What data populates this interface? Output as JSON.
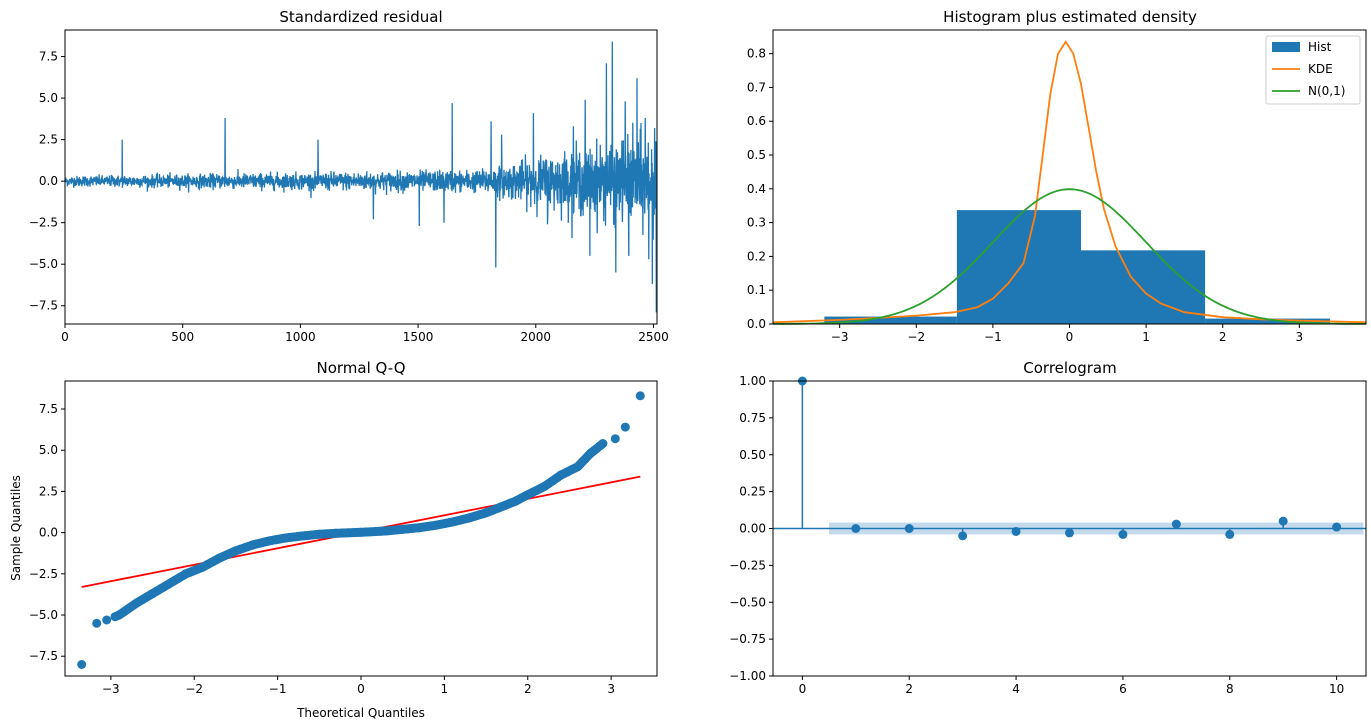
{
  "figure_colors": {
    "blue": "#1f77b4",
    "orange": "#ff7f0e",
    "green": "#2ca02c",
    "red": "#ff0000",
    "band": "#b9d3ea"
  },
  "chart_data": [
    {
      "id": "residual",
      "type": "line",
      "title": "Standardized residual",
      "xlabel": "",
      "ylabel": "",
      "xlim": [
        0,
        2515
      ],
      "ylim": [
        -8.6,
        9.1
      ],
      "xticks": [
        0,
        500,
        1000,
        1500,
        2000,
        2500
      ],
      "yticks": [
        -7.5,
        -5.0,
        -2.5,
        0.0,
        2.5,
        5.0,
        7.5
      ],
      "n": 2515,
      "series": [
        {
          "name": "",
          "values_note": "",
          "values": []
        }
      ],
      "notable_points": [
        {
          "x": 243,
          "y": 2.5
        },
        {
          "x": 680,
          "y": 3.8
        },
        {
          "x": 1075,
          "y": 2.5
        },
        {
          "x": 1310,
          "y": -2.3
        },
        {
          "x": 1505,
          "y": -2.7
        },
        {
          "x": 1610,
          "y": -2.5
        },
        {
          "x": 1645,
          "y": 4.7
        },
        {
          "x": 1810,
          "y": 3.6
        },
        {
          "x": 1830,
          "y": -5.2
        },
        {
          "x": 1855,
          "y": 2.8
        },
        {
          "x": 1990,
          "y": 4.1
        },
        {
          "x": 2050,
          "y": -2.6
        },
        {
          "x": 2160,
          "y": 3.3
        },
        {
          "x": 2210,
          "y": 4.9
        },
        {
          "x": 2230,
          "y": -4.5
        },
        {
          "x": 2300,
          "y": 7.1
        },
        {
          "x": 2325,
          "y": 8.4
        },
        {
          "x": 2340,
          "y": -5.5
        },
        {
          "x": 2380,
          "y": 4.8
        },
        {
          "x": 2395,
          "y": -4.5
        },
        {
          "x": 2430,
          "y": 6.2
        },
        {
          "x": 2465,
          "y": 3.8
        },
        {
          "x": 2480,
          "y": -4.7
        },
        {
          "x": 2495,
          "y": -6.2
        },
        {
          "x": 2505,
          "y": 3.2
        },
        {
          "x": 2512,
          "y": -7.9
        },
        {
          "x": 2515,
          "y": 2.8
        }
      ]
    },
    {
      "id": "histogram",
      "type": "bar",
      "title": "Histogram plus estimated density",
      "xlim": [
        -3.87,
        3.87
      ],
      "ylim": [
        0.0,
        0.87
      ],
      "xticks": [
        -3,
        -2,
        -1,
        0,
        1,
        2,
        3
      ],
      "yticks": [
        0.0,
        0.1,
        0.2,
        0.3,
        0.4,
        0.5,
        0.6,
        0.7,
        0.8
      ],
      "legend": [
        "Hist",
        "KDE",
        "N(0,1)"
      ],
      "legend_position": "top-right",
      "bins": [
        {
          "x0": -3.2,
          "x1": -1.47,
          "height": 0.022
        },
        {
          "x0": -1.47,
          "x1": 0.15,
          "height": 0.337
        },
        {
          "x0": 0.15,
          "x1": 1.77,
          "height": 0.218
        },
        {
          "x0": 1.77,
          "x1": 3.4,
          "height": 0.016
        }
      ],
      "kde": {
        "x": [
          -3.87,
          -3.0,
          -2.5,
          -2.0,
          -1.5,
          -1.2,
          -1.0,
          -0.8,
          -0.6,
          -0.45,
          -0.35,
          -0.25,
          -0.15,
          -0.05,
          0.05,
          0.15,
          0.25,
          0.35,
          0.45,
          0.6,
          0.8,
          1.0,
          1.2,
          1.5,
          2.0,
          2.5,
          3.0,
          3.87
        ],
        "y": [
          0.005,
          0.012,
          0.018,
          0.025,
          0.035,
          0.05,
          0.075,
          0.12,
          0.18,
          0.32,
          0.5,
          0.68,
          0.8,
          0.835,
          0.8,
          0.71,
          0.58,
          0.45,
          0.34,
          0.23,
          0.14,
          0.09,
          0.06,
          0.035,
          0.02,
          0.014,
          0.01,
          0.005
        ]
      },
      "normal_pdf": {
        "mean": 0,
        "sd": 1
      }
    },
    {
      "id": "qq",
      "type": "scatter",
      "title": "Normal Q-Q",
      "xlabel": "Theoretical Quantiles",
      "ylabel": "Sample Quantiles",
      "xlim": [
        -3.55,
        3.55
      ],
      "ylim": [
        -8.7,
        9.2
      ],
      "xticks": [
        -3,
        -2,
        -1,
        0,
        1,
        2,
        3
      ],
      "yticks": [
        -7.5,
        -5.0,
        -2.5,
        0.0,
        2.5,
        5.0,
        7.5
      ],
      "reference_line": {
        "slope": 1.0,
        "intercept": 0.05,
        "x0": -3.35,
        "x1": 3.35
      },
      "shape_points": {
        "x": [
          -3.35,
          -3.17,
          -3.05,
          -2.9,
          -2.7,
          -2.5,
          -2.3,
          -2.1,
          -1.9,
          -1.7,
          -1.5,
          -1.3,
          -1.1,
          -0.9,
          -0.7,
          -0.5,
          -0.3,
          0.0,
          0.3,
          0.5,
          0.7,
          0.9,
          1.1,
          1.3,
          1.5,
          1.7,
          1.85,
          2.0,
          2.2,
          2.4,
          2.6,
          2.75,
          2.9,
          3.05,
          3.17,
          3.35
        ],
        "y": [
          -8.0,
          -5.5,
          -5.3,
          -5.0,
          -4.3,
          -3.7,
          -3.1,
          -2.5,
          -2.1,
          -1.55,
          -1.1,
          -0.75,
          -0.5,
          -0.32,
          -0.2,
          -0.1,
          -0.04,
          0.02,
          0.1,
          0.2,
          0.3,
          0.45,
          0.65,
          0.9,
          1.2,
          1.6,
          1.9,
          2.3,
          2.8,
          3.5,
          4.0,
          4.8,
          5.4,
          5.7,
          6.4,
          8.3
        ]
      }
    },
    {
      "id": "correlogram",
      "type": "scatter",
      "title": "Correlogram",
      "xlim": [
        -0.55,
        10.55
      ],
      "ylim": [
        -1.0,
        1.0
      ],
      "xticks": [
        0,
        2,
        4,
        6,
        8,
        10
      ],
      "yticks": [
        -1.0,
        -0.75,
        -0.5,
        -0.25,
        0.0,
        0.25,
        0.5,
        0.75,
        1.0
      ],
      "lags": [
        0,
        1,
        2,
        3,
        4,
        5,
        6,
        7,
        8,
        9,
        10
      ],
      "acf": [
        1.0,
        0.0,
        0.0,
        -0.05,
        -0.02,
        -0.03,
        -0.04,
        0.03,
        -0.04,
        0.05,
        0.01
      ],
      "confidence_band": {
        "x0": 0.5,
        "x1": 10.5,
        "half_width": 0.04
      }
    }
  ]
}
